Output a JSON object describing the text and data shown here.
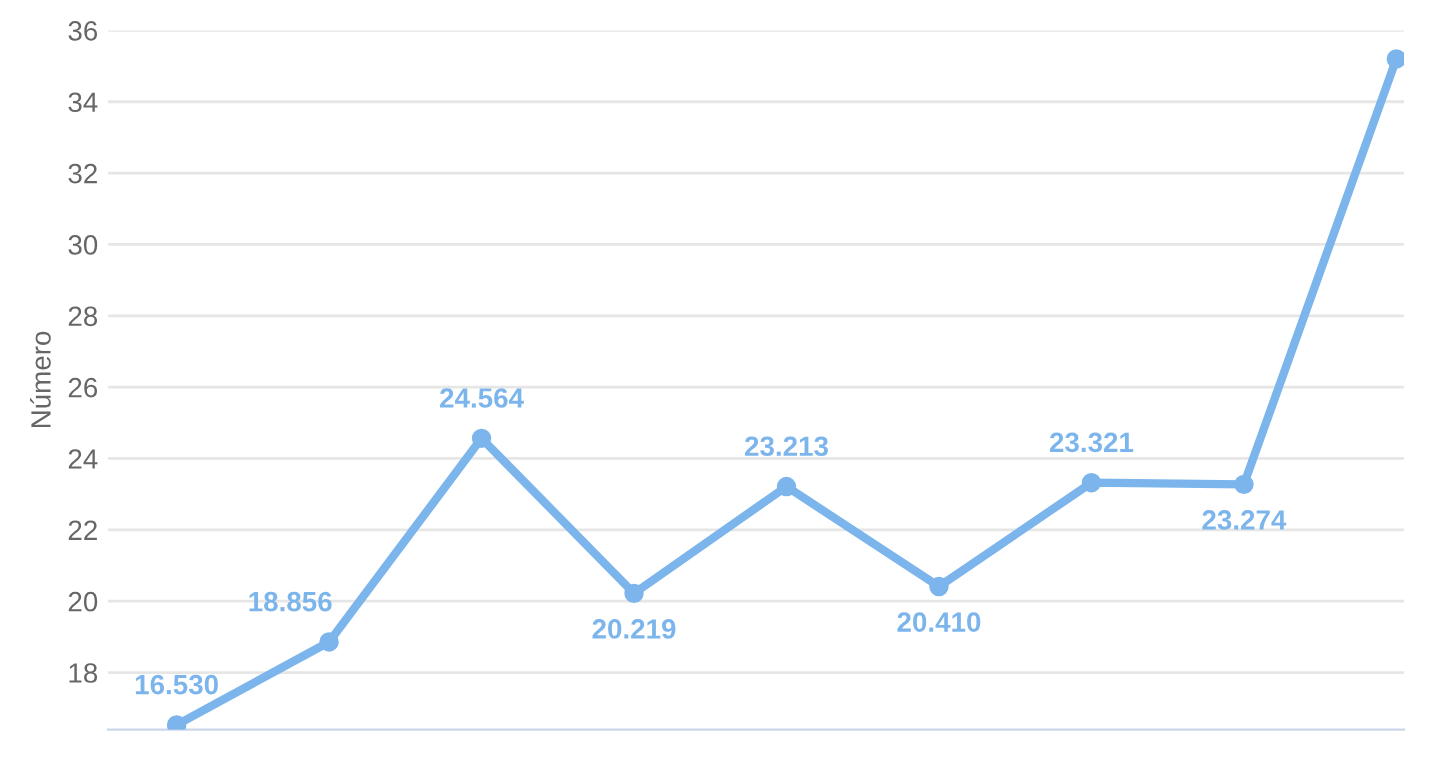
{
  "chart_data": {
    "type": "line",
    "ylabel": "Número",
    "categories": [
      null,
      null,
      null,
      null,
      null,
      null,
      null,
      null,
      null
    ],
    "series": [
      {
        "color": "#7cb5ec",
        "values": [
          16.53,
          18.856,
          24.564,
          20.219,
          23.213,
          20.41,
          23.321,
          23.274,
          35.2
        ],
        "value_labels": [
          "16.530",
          "18.856",
          "24.564",
          "20.219",
          "23.213",
          "20.410",
          "23.321",
          "23.274",
          null
        ]
      }
    ],
    "ylim": [
      16.4,
      36
    ],
    "yticks": [
      18,
      20,
      22,
      24,
      26,
      28,
      30,
      32,
      34,
      36
    ],
    "grid": "y",
    "marker": "circle",
    "line_style": "solid"
  }
}
